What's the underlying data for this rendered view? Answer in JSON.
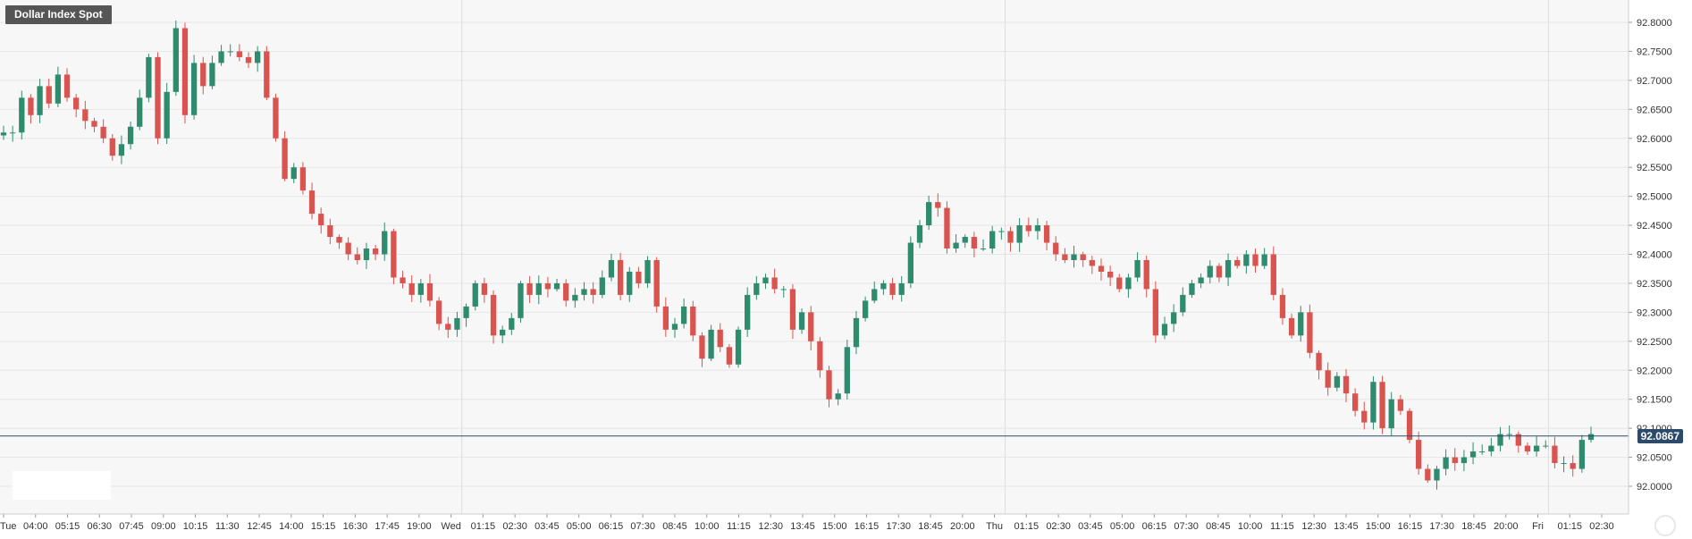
{
  "title": "Dollar Index Spot",
  "chart_data": {
    "type": "candlestick",
    "title": "Dollar Index Spot",
    "last_price": "92.0867",
    "last_price_value": 92.0867,
    "ylim": [
      91.98,
      92.81
    ],
    "y_ticks": [
      "92.8000",
      "92.7500",
      "92.7000",
      "92.6500",
      "92.6000",
      "92.5500",
      "92.5000",
      "92.4500",
      "92.4000",
      "92.3500",
      "92.3000",
      "92.2500",
      "92.2000",
      "92.1500",
      "92.1000",
      "92.0500",
      "92.0000"
    ],
    "x_ticks": [
      "Tue",
      "04:00",
      "05:15",
      "06:30",
      "07:45",
      "09:00",
      "10:15",
      "11:30",
      "12:45",
      "14:00",
      "15:15",
      "16:30",
      "17:45",
      "19:00",
      "Wed",
      "01:15",
      "02:30",
      "03:45",
      "05:00",
      "06:15",
      "07:30",
      "08:45",
      "10:00",
      "11:15",
      "12:30",
      "13:45",
      "15:00",
      "16:15",
      "17:30",
      "18:45",
      "20:00",
      "Thu",
      "01:15",
      "02:30",
      "03:45",
      "05:00",
      "06:15",
      "07:30",
      "08:45",
      "10:00",
      "11:15",
      "12:30",
      "13:45",
      "15:00",
      "16:15",
      "17:30",
      "18:45",
      "20:00",
      "Fri",
      "01:15",
      "02:30"
    ],
    "day_separators": [
      "Wed",
      "Thu",
      "Fri"
    ],
    "grid": true,
    "colors": {
      "up": "#2e8b6e",
      "down": "#d9534f",
      "grid": "#e6e6e6",
      "price_line": "#2e4a6b"
    },
    "key_points": [
      92.61,
      92.61,
      92.67,
      92.64,
      92.69,
      92.66,
      92.71,
      92.67,
      92.65,
      92.63,
      92.62,
      92.6,
      92.57,
      92.59,
      92.62,
      92.67,
      92.74,
      92.6,
      92.68,
      92.79,
      92.64,
      92.73,
      92.69,
      92.73,
      92.75,
      92.75,
      92.74,
      92.73,
      92.75,
      92.67,
      92.6,
      92.53,
      92.55,
      92.51,
      92.47,
      92.45,
      92.43,
      92.42,
      92.4,
      92.39,
      92.41,
      92.4,
      92.44,
      92.36,
      92.35,
      92.33,
      92.35,
      92.32,
      92.28,
      92.27,
      92.29,
      92.31,
      92.35,
      92.33,
      92.26,
      92.27,
      92.29,
      92.35,
      92.33,
      92.35,
      92.34,
      92.35,
      92.32,
      92.33,
      92.34,
      92.33,
      92.36,
      92.39,
      92.33,
      92.37,
      92.35,
      92.39,
      92.31,
      92.27,
      92.28,
      92.31,
      92.26,
      92.22,
      92.27,
      92.24,
      92.21,
      92.27,
      92.33,
      92.35,
      92.36,
      92.34,
      92.34,
      92.27,
      92.3,
      92.25,
      92.2,
      92.15,
      92.16,
      92.24,
      92.29,
      92.32,
      92.34,
      92.35,
      92.33,
      92.35,
      92.42,
      92.45,
      92.49,
      92.48,
      92.41,
      92.42,
      92.43,
      92.41,
      92.41,
      92.44,
      92.44,
      92.42,
      92.45,
      92.44,
      92.45,
      92.42,
      92.4,
      92.39,
      92.4,
      92.39,
      92.38,
      92.37,
      92.36,
      92.34,
      92.36,
      92.39,
      92.34,
      92.26,
      92.28,
      92.3,
      92.33,
      92.35,
      92.36,
      92.38,
      92.36,
      92.39,
      92.38,
      92.4,
      92.38,
      92.4,
      92.33,
      92.29,
      92.26,
      92.3,
      92.23,
      92.2,
      92.17,
      92.19,
      92.16,
      92.13,
      92.11,
      92.18,
      92.1,
      92.15,
      92.13,
      92.08,
      92.03,
      92.01,
      92.03,
      92.05,
      92.04,
      92.05,
      92.06,
      92.06,
      92.07,
      92.09,
      92.09,
      92.07,
      92.06,
      92.07,
      92.07,
      92.04,
      92.04,
      92.03,
      92.08,
      92.09
    ]
  }
}
